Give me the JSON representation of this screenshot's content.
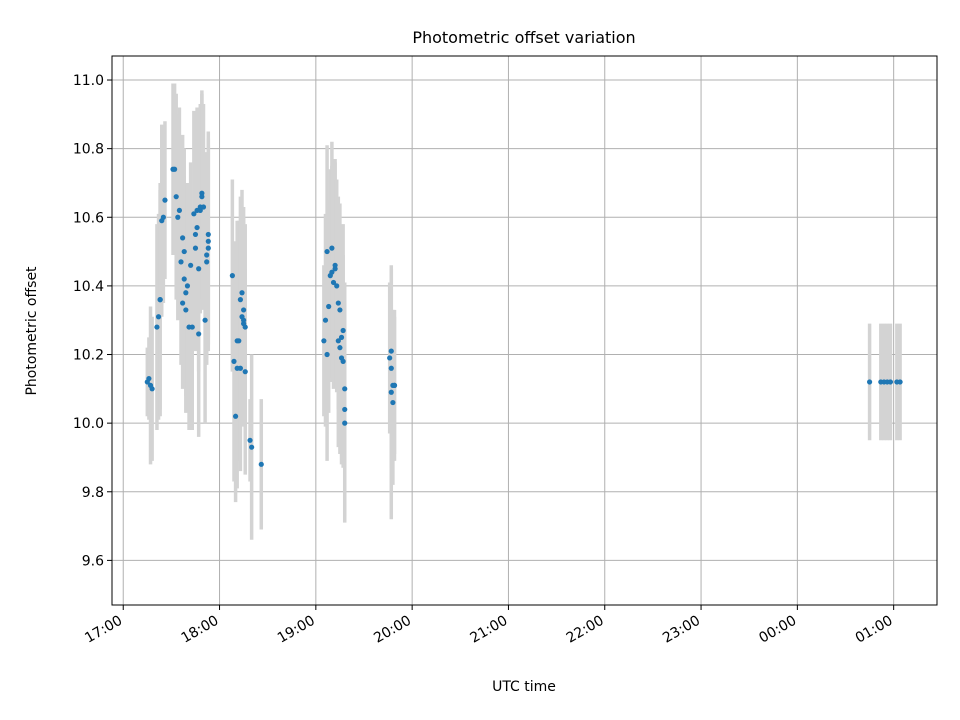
{
  "chart_data": {
    "type": "scatter",
    "title": "Photometric offset variation",
    "xlabel": "UTC time",
    "ylabel": "Photometric offset",
    "x_tick_labels": [
      "17:00",
      "18:00",
      "19:00",
      "20:00",
      "21:00",
      "22:00",
      "23:00",
      "00:00",
      "01:00"
    ],
    "y_tick_labels": [
      "9.6",
      "9.8",
      "10.0",
      "10.2",
      "10.4",
      "10.6",
      "10.8",
      "11.0"
    ],
    "xlim": [
      "16:53",
      "01:27"
    ],
    "ylim": [
      9.47,
      11.07
    ],
    "grid": true,
    "colors": {
      "points": "#1f77b4",
      "errorbars": "#d3d3d3",
      "grid": "#b0b0b0"
    },
    "series": [
      {
        "points": [
          {
            "x": "17:15",
            "y": 10.12,
            "err": 0.1
          },
          {
            "x": "17:16",
            "y": 10.13,
            "err": 0.12
          },
          {
            "x": "17:17",
            "y": 10.11,
            "err": 0.23
          },
          {
            "x": "17:18",
            "y": 10.1,
            "err": 0.21
          },
          {
            "x": "17:21",
            "y": 10.28,
            "err": 0.3
          },
          {
            "x": "17:22",
            "y": 10.31,
            "err": 0.3
          },
          {
            "x": "17:23",
            "y": 10.36,
            "err": 0.32
          },
          {
            "x": "17:23",
            "y": 10.36,
            "err": 0.34
          },
          {
            "x": "17:24",
            "y": 10.59,
            "err": 0.28
          },
          {
            "x": "17:25",
            "y": 10.6,
            "err": 0.25
          },
          {
            "x": "17:26",
            "y": 10.65,
            "err": 0.23
          },
          {
            "x": "17:31",
            "y": 10.74,
            "err": 0.25
          },
          {
            "x": "17:32",
            "y": 10.74,
            "err": 0.25
          },
          {
            "x": "17:33",
            "y": 10.66,
            "err": 0.3
          },
          {
            "x": "17:34",
            "y": 10.6,
            "err": 0.3
          },
          {
            "x": "17:35",
            "y": 10.62,
            "err": 0.3
          },
          {
            "x": "17:36",
            "y": 10.47,
            "err": 0.3
          },
          {
            "x": "17:37",
            "y": 10.35,
            "err": 0.25
          },
          {
            "x": "17:37",
            "y": 10.54,
            "err": 0.3
          },
          {
            "x": "17:38",
            "y": 10.42,
            "err": 0.3
          },
          {
            "x": "17:38",
            "y": 10.5,
            "err": 0.3
          },
          {
            "x": "17:39",
            "y": 10.38,
            "err": 0.3
          },
          {
            "x": "17:39",
            "y": 10.33,
            "err": 0.3
          },
          {
            "x": "17:40",
            "y": 10.4,
            "err": 0.3
          },
          {
            "x": "17:41",
            "y": 10.28,
            "err": 0.3
          },
          {
            "x": "17:42",
            "y": 10.46,
            "err": 0.3
          },
          {
            "x": "17:43",
            "y": 10.28,
            "err": 0.3
          },
          {
            "x": "17:44",
            "y": 10.61,
            "err": 0.3
          },
          {
            "x": "17:45",
            "y": 10.51,
            "err": 0.3
          },
          {
            "x": "17:45",
            "y": 10.55,
            "err": 0.3
          },
          {
            "x": "17:46",
            "y": 10.57,
            "err": 0.3
          },
          {
            "x": "17:46",
            "y": 10.62,
            "err": 0.3
          },
          {
            "x": "17:47",
            "y": 10.45,
            "err": 0.3
          },
          {
            "x": "17:47",
            "y": 10.26,
            "err": 0.3
          },
          {
            "x": "17:48",
            "y": 10.62,
            "err": 0.3
          },
          {
            "x": "17:48",
            "y": 10.63,
            "err": 0.3
          },
          {
            "x": "17:49",
            "y": 10.67,
            "err": 0.3
          },
          {
            "x": "17:49",
            "y": 10.66,
            "err": 0.3
          },
          {
            "x": "17:50",
            "y": 10.63,
            "err": 0.3
          },
          {
            "x": "17:51",
            "y": 10.3,
            "err": 0.3
          },
          {
            "x": "17:52",
            "y": 10.47,
            "err": 0.3
          },
          {
            "x": "17:52",
            "y": 10.49,
            "err": 0.3
          },
          {
            "x": "17:53",
            "y": 10.53,
            "err": 0.3
          },
          {
            "x": "17:53",
            "y": 10.51,
            "err": 0.3
          },
          {
            "x": "17:53",
            "y": 10.55,
            "err": 0.3
          },
          {
            "x": "18:08",
            "y": 10.43,
            "err": 0.28
          },
          {
            "x": "18:09",
            "y": 10.18,
            "err": 0.35
          },
          {
            "x": "18:10",
            "y": 10.02,
            "err": 0.25
          },
          {
            "x": "18:11",
            "y": 10.16,
            "err": 0.35
          },
          {
            "x": "18:11",
            "y": 10.24,
            "err": 0.35
          },
          {
            "x": "18:12",
            "y": 10.24,
            "err": 0.35
          },
          {
            "x": "18:13",
            "y": 10.36,
            "err": 0.3
          },
          {
            "x": "18:13",
            "y": 10.16,
            "err": 0.3
          },
          {
            "x": "18:14",
            "y": 10.38,
            "err": 0.3
          },
          {
            "x": "18:14",
            "y": 10.31,
            "err": 0.3
          },
          {
            "x": "18:15",
            "y": 10.29,
            "err": 0.3
          },
          {
            "x": "18:15",
            "y": 10.33,
            "err": 0.3
          },
          {
            "x": "18:15",
            "y": 10.3,
            "err": 0.3
          },
          {
            "x": "18:16",
            "y": 10.15,
            "err": 0.3
          },
          {
            "x": "18:16",
            "y": 10.28,
            "err": 0.3
          },
          {
            "x": "18:19",
            "y": 9.95,
            "err": 0.12
          },
          {
            "x": "18:20",
            "y": 9.93,
            "err": 0.27
          },
          {
            "x": "18:26",
            "y": 9.88,
            "err": 0.19
          },
          {
            "x": "19:05",
            "y": 10.24,
            "err": 0.22
          },
          {
            "x": "19:06",
            "y": 10.3,
            "err": 0.31
          },
          {
            "x": "19:07",
            "y": 10.2,
            "err": 0.31
          },
          {
            "x": "19:07",
            "y": 10.5,
            "err": 0.31
          },
          {
            "x": "19:08",
            "y": 10.34,
            "err": 0.31
          },
          {
            "x": "19:09",
            "y": 10.43,
            "err": 0.31
          },
          {
            "x": "19:10",
            "y": 10.51,
            "err": 0.31
          },
          {
            "x": "19:10",
            "y": 10.44,
            "err": 0.31
          },
          {
            "x": "19:11",
            "y": 10.41,
            "err": 0.31
          },
          {
            "x": "19:12",
            "y": 10.45,
            "err": 0.31
          },
          {
            "x": "19:12",
            "y": 10.46,
            "err": 0.31
          },
          {
            "x": "19:13",
            "y": 10.4,
            "err": 0.31
          },
          {
            "x": "19:14",
            "y": 10.35,
            "err": 0.31
          },
          {
            "x": "19:14",
            "y": 10.24,
            "err": 0.31
          },
          {
            "x": "19:15",
            "y": 10.33,
            "err": 0.31
          },
          {
            "x": "19:15",
            "y": 10.22,
            "err": 0.31
          },
          {
            "x": "19:16",
            "y": 10.25,
            "err": 0.31
          },
          {
            "x": "19:16",
            "y": 10.19,
            "err": 0.31
          },
          {
            "x": "19:17",
            "y": 10.27,
            "err": 0.31
          },
          {
            "x": "19:17",
            "y": 10.18,
            "err": 0.31
          },
          {
            "x": "19:18",
            "y": 10.04,
            "err": 0.31
          },
          {
            "x": "19:18",
            "y": 10.1,
            "err": 0.31
          },
          {
            "x": "19:18",
            "y": 10.0,
            "err": 0.29
          },
          {
            "x": "19:46",
            "y": 10.19,
            "err": 0.22
          },
          {
            "x": "19:47",
            "y": 10.21,
            "err": 0.24
          },
          {
            "x": "19:47",
            "y": 10.16,
            "err": 0.29
          },
          {
            "x": "19:47",
            "y": 10.09,
            "err": 0.37
          },
          {
            "x": "19:48",
            "y": 10.06,
            "err": 0.24
          },
          {
            "x": "19:48",
            "y": 10.11,
            "err": 0.22
          },
          {
            "x": "19:49",
            "y": 10.11,
            "err": 0.22
          },
          {
            "x": "19:49",
            "y": 10.11,
            "err": 0.2
          },
          {
            "x": "00:45",
            "y": 10.12,
            "err": 0.17
          },
          {
            "x": "00:52",
            "y": 10.12,
            "err": 0.17
          },
          {
            "x": "00:54",
            "y": 10.12,
            "err": 0.17
          },
          {
            "x": "00:56",
            "y": 10.12,
            "err": 0.17
          },
          {
            "x": "00:58",
            "y": 10.12,
            "err": 0.17
          },
          {
            "x": "01:02",
            "y": 10.12,
            "err": 0.17
          },
          {
            "x": "01:04",
            "y": 10.12,
            "err": 0.17
          }
        ]
      }
    ]
  }
}
